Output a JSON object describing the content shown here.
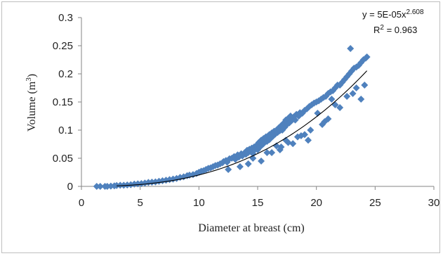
{
  "chart_data": {
    "type": "scatter",
    "xlabel": "Diameter at breast (cm)",
    "ylabel_main": "Volume (m",
    "ylabel_sup": "3",
    "ylabel_close": ")",
    "xlim": [
      0,
      30
    ],
    "ylim": [
      0,
      0.3
    ],
    "xticks": [
      {
        "v": 0,
        "label": "0"
      },
      {
        "v": 5,
        "label": "5"
      },
      {
        "v": 10,
        "label": "10"
      },
      {
        "v": 15,
        "label": "15"
      },
      {
        "v": 20,
        "label": "20"
      },
      {
        "v": 25,
        "label": "25"
      },
      {
        "v": 30,
        "label": "30"
      }
    ],
    "yticks": [
      {
        "v": 0,
        "label": "0"
      },
      {
        "v": 0.05,
        "label": "0.05"
      },
      {
        "v": 0.1,
        "label": "0.1"
      },
      {
        "v": 0.15,
        "label": "0.15"
      },
      {
        "v": 0.2,
        "label": "0.2"
      },
      {
        "v": 0.25,
        "label": "0.25"
      },
      {
        "v": 0.3,
        "label": "0.3"
      }
    ],
    "grid": false,
    "legend": "none",
    "marker_color": "#4f81bd",
    "trendline": {
      "type": "power",
      "a": 5e-05,
      "b": 2.608,
      "x_range": [
        3,
        24.3
      ],
      "color": "#000000",
      "equation_prefix": "y = 5E-05x",
      "equation_exp": "2.608",
      "r2_prefix": "R",
      "r2_sup": "2",
      "r2_value": " = 0.963"
    },
    "series": [
      {
        "x": [
          1.3,
          1.6,
          2.0,
          2.2,
          2.5,
          2.8,
          3.0,
          3.3,
          3.6,
          3.9,
          4.2,
          4.5,
          4.8,
          5.1,
          5.4,
          5.7,
          6.0,
          6.3,
          6.6,
          6.9,
          7.2,
          7.5,
          7.8,
          8.1,
          8.4,
          8.7,
          9.0,
          9.2,
          9.5,
          9.8,
          10.0,
          10.2,
          10.4,
          10.6,
          10.8,
          11.0,
          11.2,
          11.4,
          11.6,
          11.8,
          12.0,
          12.1,
          12.3,
          12.4,
          12.6,
          12.8,
          13.0,
          13.1,
          13.3,
          13.4,
          13.6,
          13.7,
          13.9,
          14.0,
          14.1,
          14.2,
          14.3,
          14.4,
          14.5,
          14.6,
          14.7,
          14.8,
          14.9,
          15.0,
          15.0,
          15.1,
          15.2,
          15.3,
          15.4,
          15.5,
          15.5,
          15.6,
          15.7,
          15.8,
          15.9,
          16.0,
          16.0,
          16.1,
          16.2,
          16.3,
          16.4,
          16.5,
          16.6,
          16.7,
          16.8,
          16.9,
          17.0,
          17.1,
          17.2,
          17.3,
          17.4,
          17.5,
          17.6,
          17.7,
          17.8,
          17.9,
          18.0,
          18.1,
          18.2,
          18.3,
          18.5,
          18.6,
          18.8,
          19.0,
          19.2,
          19.4,
          19.6,
          19.8,
          20.0,
          20.2,
          20.4,
          20.6,
          20.8,
          21.0,
          21.2,
          21.4,
          21.6,
          21.8,
          22.0,
          22.2,
          22.4,
          22.6,
          22.8,
          23.0,
          23.2,
          23.4,
          23.6,
          23.8,
          24.0,
          24.2,
          24.3,
          12.5,
          13.5,
          14.2,
          15.3,
          16.2,
          17.0,
          17.6,
          18.4,
          19.0,
          20.5,
          21.0,
          22.0,
          22.6,
          23.4,
          24.1,
          15.8,
          16.6,
          17.4,
          18.7,
          19.5,
          20.1,
          21.3,
          22.9,
          23.8,
          14.6,
          16.9,
          18.0,
          19.3,
          20.7,
          21.6,
          23.1
        ],
        "y": [
          0.0,
          0.0,
          0.0,
          0.0,
          0.0005,
          0.001,
          0.0015,
          0.002,
          0.002,
          0.0025,
          0.003,
          0.004,
          0.0045,
          0.005,
          0.006,
          0.007,
          0.0075,
          0.008,
          0.009,
          0.01,
          0.011,
          0.012,
          0.013,
          0.014,
          0.016,
          0.017,
          0.019,
          0.02,
          0.021,
          0.023,
          0.025,
          0.027,
          0.028,
          0.03,
          0.032,
          0.033,
          0.035,
          0.037,
          0.038,
          0.04,
          0.042,
          0.044,
          0.046,
          0.043,
          0.049,
          0.05,
          0.053,
          0.048,
          0.056,
          0.052,
          0.058,
          0.054,
          0.06,
          0.057,
          0.064,
          0.06,
          0.066,
          0.062,
          0.068,
          0.058,
          0.07,
          0.066,
          0.072,
          0.075,
          0.065,
          0.078,
          0.07,
          0.082,
          0.074,
          0.085,
          0.076,
          0.079,
          0.088,
          0.08,
          0.09,
          0.092,
          0.083,
          0.087,
          0.095,
          0.089,
          0.098,
          0.093,
          0.1,
          0.096,
          0.104,
          0.099,
          0.108,
          0.1,
          0.112,
          0.105,
          0.118,
          0.11,
          0.121,
          0.113,
          0.125,
          0.117,
          0.12,
          0.124,
          0.118,
          0.128,
          0.125,
          0.131,
          0.13,
          0.135,
          0.138,
          0.142,
          0.145,
          0.148,
          0.15,
          0.152,
          0.155,
          0.158,
          0.16,
          0.165,
          0.168,
          0.17,
          0.175,
          0.18,
          0.18,
          0.185,
          0.19,
          0.195,
          0.2,
          0.205,
          0.21,
          0.212,
          0.215,
          0.22,
          0.225,
          0.228,
          0.23,
          0.03,
          0.035,
          0.04,
          0.045,
          0.06,
          0.07,
          0.078,
          0.088,
          0.092,
          0.11,
          0.12,
          0.14,
          0.16,
          0.175,
          0.18,
          0.06,
          0.072,
          0.082,
          0.09,
          0.1,
          0.13,
          0.155,
          0.245,
          0.155,
          0.05,
          0.065,
          0.076,
          0.082,
          0.115,
          0.145,
          0.165
        ]
      }
    ]
  }
}
